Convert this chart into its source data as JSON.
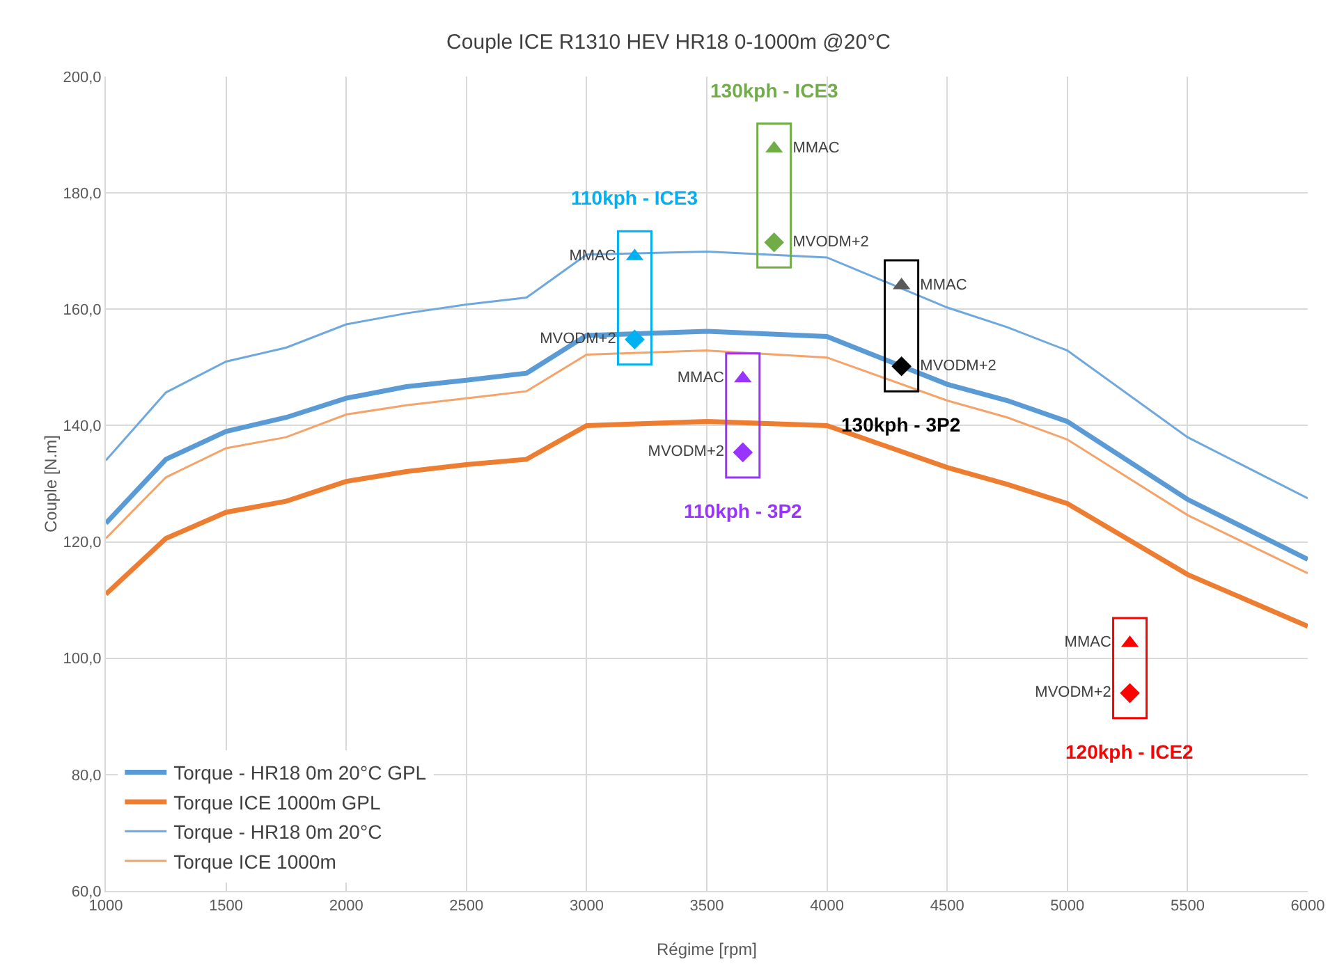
{
  "chart_data": {
    "type": "line",
    "title": "Couple ICE R1310 HEV HR18 0-1000m @20°C",
    "xlabel": "Régime [rpm]",
    "ylabel": "Couple [N.m]",
    "x": [
      1000,
      1250,
      1500,
      1750,
      2000,
      2250,
      2500,
      2750,
      3000,
      3500,
      4000,
      4500,
      4750,
      5000,
      5500,
      6000
    ],
    "series": [
      {
        "name": "Torque - HR18 0m 20°C GPL",
        "color": "#5b9bd5",
        "values": [
          123.2,
          134.2,
          139.0,
          141.4,
          144.7,
          146.7,
          147.8,
          149.0,
          155.5,
          156.2,
          155.3,
          147.1,
          144.3,
          140.7,
          127.3,
          117.0
        ]
      },
      {
        "name": "Torque ICE 1000m GPL",
        "color": "#ed7d31",
        "values": [
          111.0,
          120.6,
          125.1,
          127.0,
          130.4,
          132.1,
          133.3,
          134.2,
          140.0,
          140.7,
          140.0,
          132.8,
          129.9,
          126.6,
          114.4,
          105.5
        ]
      },
      {
        "name": "Torque - HR18 0m 20°C",
        "color": "#6fa8dc",
        "values": [
          134.0,
          145.7,
          151.0,
          153.4,
          157.4,
          159.3,
          160.8,
          162.0,
          169.4,
          169.9,
          168.9,
          160.3,
          156.9,
          152.9,
          138.0,
          127.5
        ]
      },
      {
        "name": "Torque ICE 1000m",
        "color": "#f4a46a",
        "values": [
          120.6,
          131.1,
          136.1,
          138.0,
          141.9,
          143.5,
          144.7,
          145.9,
          152.2,
          152.9,
          151.7,
          144.3,
          141.4,
          137.6,
          124.6,
          114.6
        ]
      },
      {
        "type": "scatter",
        "name": "110kph - ICE3",
        "color": "#00b0f0",
        "marker": [
          "triangle",
          "diamond"
        ],
        "x": [
          3200,
          3200
        ],
        "values": [
          169.1,
          154.8
        ],
        "value_labels": [
          "MMAC",
          "MVODM+2"
        ]
      },
      {
        "type": "scatter",
        "name": "130kph - ICE3",
        "color": "#70ad47",
        "marker": [
          "triangle",
          "diamond"
        ],
        "x": [
          3780,
          3780
        ],
        "values": [
          187.6,
          171.5
        ],
        "value_labels": [
          "MMAC",
          "MVODM+2"
        ]
      },
      {
        "type": "scatter",
        "name": "110kph - 3P2",
        "color": "#9933ff",
        "marker": [
          "triangle",
          "diamond"
        ],
        "x": [
          3650,
          3650
        ],
        "values": [
          148.1,
          135.4
        ],
        "value_labels": [
          "MMAC",
          "MVODM+2"
        ]
      },
      {
        "type": "scatter",
        "name": "130kph - 3P2",
        "color": "#000000",
        "colors": [
          "#595959",
          "#000000"
        ],
        "marker": [
          "triangle",
          "diamond"
        ],
        "x": [
          4310,
          4310
        ],
        "values": [
          164.1,
          150.2
        ],
        "value_labels": [
          "MMAC",
          "MVODM+2"
        ]
      },
      {
        "type": "scatter",
        "name": "120kph - ICE2",
        "color": "#ff0000",
        "marker": [
          "triangle",
          "diamond"
        ],
        "x": [
          5260,
          5260
        ],
        "values": [
          102.6,
          94.0
        ],
        "value_labels": [
          "MMAC",
          "MVODM+2"
        ]
      }
    ],
    "xlim": [
      1000,
      6000
    ],
    "xticks": [
      1000,
      1500,
      2000,
      2500,
      3000,
      3500,
      4000,
      4500,
      5000,
      5500,
      6000
    ],
    "ylim": [
      60,
      200
    ],
    "yticks": [
      {
        "value": 60,
        "label": "60,0"
      },
      {
        "value": 80,
        "label": "80,0"
      },
      {
        "value": 100,
        "label": "100,0"
      },
      {
        "value": 120,
        "label": "120,0"
      },
      {
        "value": 140,
        "label": "140,0"
      },
      {
        "value": 160,
        "label": "160,0"
      },
      {
        "value": 180,
        "label": "180,0"
      },
      {
        "value": 200,
        "label": "200,0"
      }
    ],
    "grid": true,
    "legend": "bottom left",
    "marker": "none",
    "line_style": "solid"
  }
}
